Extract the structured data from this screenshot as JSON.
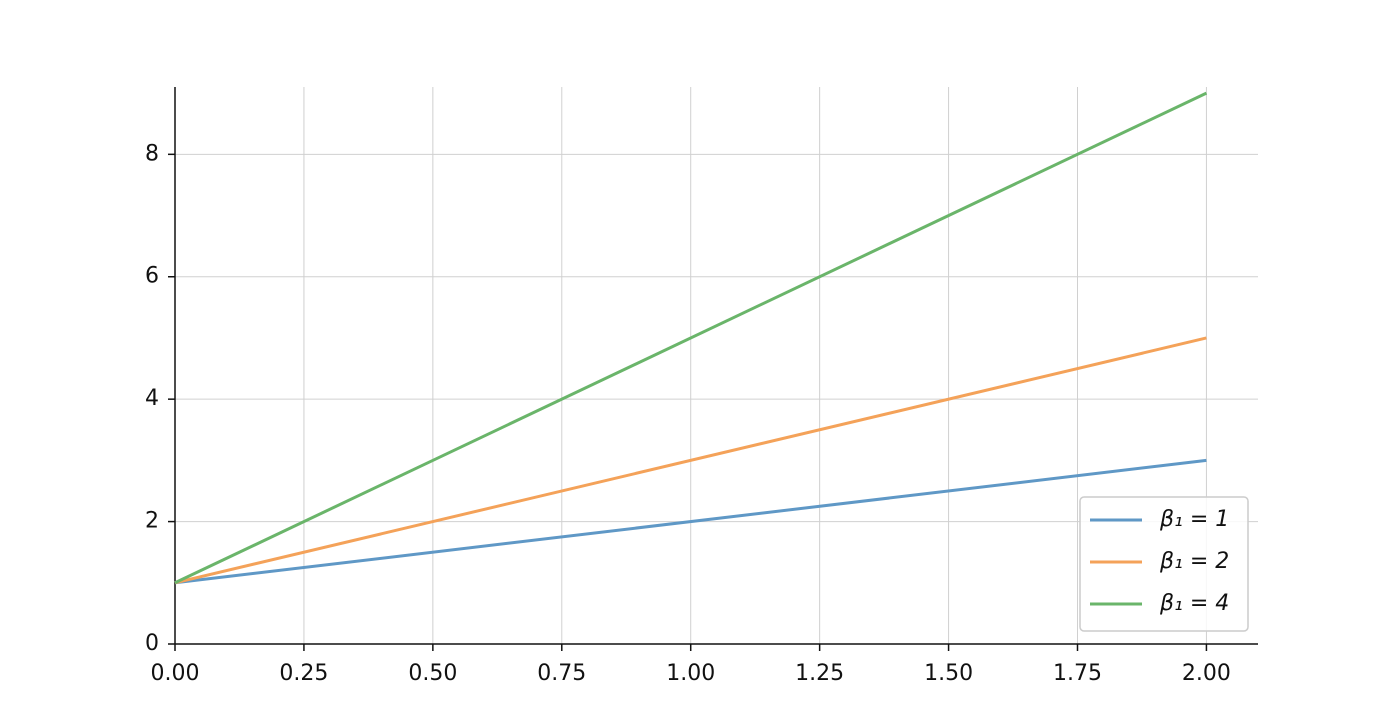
{
  "chart_data": {
    "type": "line",
    "x": [
      0,
      2
    ],
    "series": [
      {
        "name": "β₁ = 1",
        "color": "#5f98c6",
        "values": [
          1,
          3
        ]
      },
      {
        "name": "β₁ = 2",
        "color": "#f4a259",
        "values": [
          1,
          5
        ]
      },
      {
        "name": "β₁ = 4",
        "color": "#6ab56a",
        "values": [
          1,
          9
        ]
      }
    ],
    "xlim": [
      0,
      2.1
    ],
    "xticks": [
      {
        "value": 0,
        "label": "0.00"
      },
      {
        "value": 0.25,
        "label": "0.25"
      },
      {
        "value": 0.5,
        "label": "0.50"
      },
      {
        "value": 0.75,
        "label": "0.75"
      },
      {
        "value": 1,
        "label": "1.00"
      },
      {
        "value": 1.25,
        "label": "1.25"
      },
      {
        "value": 1.5,
        "label": "1.50"
      },
      {
        "value": 1.75,
        "label": "1.75"
      },
      {
        "value": 2,
        "label": "2.00"
      }
    ],
    "ylim": [
      0,
      9.1
    ],
    "yticks": [
      0,
      2,
      4,
      6,
      8
    ],
    "grid": true,
    "legend": "lower right"
  }
}
